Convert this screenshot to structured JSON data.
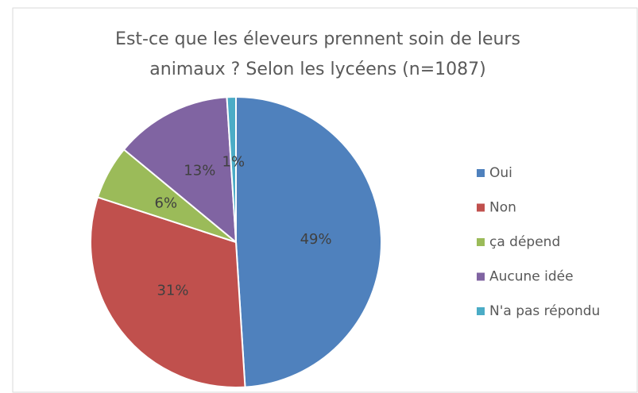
{
  "chart_data": {
    "type": "pie",
    "title": [
      "Est-ce que les éleveurs prennent soin de leurs",
      "animaux ? Selon les lycéens (n=1087)"
    ],
    "categories": [
      "Oui",
      "Non",
      "ça dépend",
      "Aucune idée",
      "N'a pas répondu"
    ],
    "values": [
      49,
      31,
      6,
      13,
      1
    ],
    "value_labels": [
      "49%",
      "31%",
      "6%",
      "13%",
      "1%"
    ],
    "colors": [
      "#4f81bd",
      "#c0504d",
      "#9bbb59",
      "#8064a2",
      "#4bacc6"
    ],
    "legend": "right"
  }
}
